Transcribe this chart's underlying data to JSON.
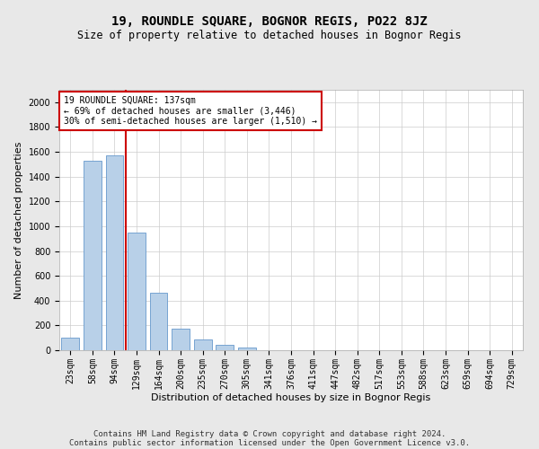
{
  "title": "19, ROUNDLE SQUARE, BOGNOR REGIS, PO22 8JZ",
  "subtitle": "Size of property relative to detached houses in Bognor Regis",
  "xlabel": "Distribution of detached houses by size in Bognor Regis",
  "ylabel": "Number of detached properties",
  "categories": [
    "23sqm",
    "58sqm",
    "94sqm",
    "129sqm",
    "164sqm",
    "200sqm",
    "235sqm",
    "270sqm",
    "305sqm",
    "341sqm",
    "376sqm",
    "411sqm",
    "447sqm",
    "482sqm",
    "517sqm",
    "553sqm",
    "588sqm",
    "623sqm",
    "659sqm",
    "694sqm",
    "729sqm"
  ],
  "values": [
    100,
    1530,
    1570,
    950,
    465,
    175,
    90,
    40,
    25,
    0,
    0,
    0,
    0,
    0,
    0,
    0,
    0,
    0,
    0,
    0,
    0
  ],
  "bar_color": "#b8d0e8",
  "bar_edge_color": "#6699cc",
  "vline_x_index": 3,
  "vline_color": "#cc0000",
  "annotation_line1": "19 ROUNDLE SQUARE: 137sqm",
  "annotation_line2": "← 69% of detached houses are smaller (3,446)",
  "annotation_line3": "30% of semi-detached houses are larger (1,510) →",
  "annotation_box_color": "#ffffff",
  "annotation_box_edge_color": "#cc0000",
  "ylim": [
    0,
    2100
  ],
  "yticks": [
    0,
    200,
    400,
    600,
    800,
    1000,
    1200,
    1400,
    1600,
    1800,
    2000
  ],
  "footer_line1": "Contains HM Land Registry data © Crown copyright and database right 2024.",
  "footer_line2": "Contains public sector information licensed under the Open Government Licence v3.0.",
  "title_fontsize": 10,
  "subtitle_fontsize": 8.5,
  "axis_label_fontsize": 8,
  "tick_fontsize": 7,
  "footer_fontsize": 6.5,
  "annotation_fontsize": 7,
  "bg_color": "#e8e8e8",
  "plot_bg_color": "#ffffff",
  "grid_color": "#cccccc"
}
